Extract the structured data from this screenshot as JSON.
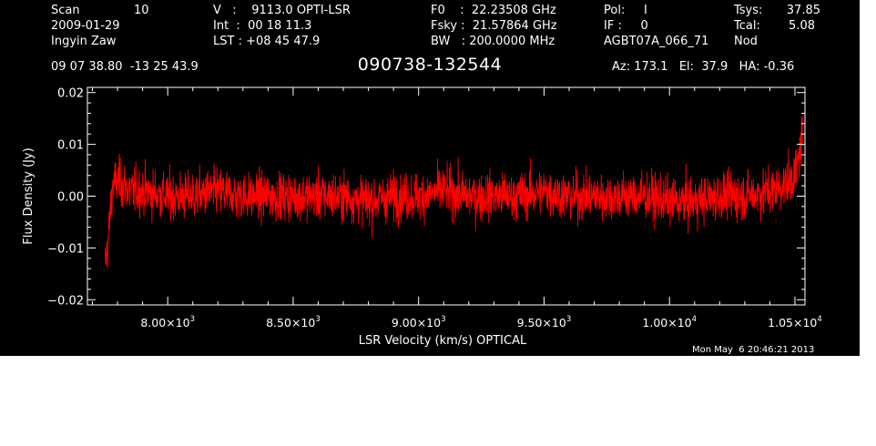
{
  "header": {
    "col1": [
      {
        "label": "Scan",
        "value": "10"
      },
      {
        "label": "2009-01-29",
        "value": ""
      },
      {
        "label": "Ingyin Zaw",
        "value": ""
      }
    ],
    "col2": [
      "V   :    9113.0 OPTI-LSR",
      "Int  :  00 18 11.3",
      "LST : +08 45 47.9"
    ],
    "col3": [
      "F0    :  22.23508 GHz",
      "Fsky :  21.57864 GHz",
      "BW   : 200.0000 MHz"
    ],
    "col4": [
      "Pol:     I",
      "IF :     0",
      "AGBT07A_066_71"
    ],
    "col5": [
      {
        "label": "Tsys:",
        "value": "37.85"
      },
      {
        "label": "Tcal:",
        "value": "5.08"
      },
      {
        "label": "Nod",
        "value": ""
      }
    ],
    "coords": "09 07 38.80  -13 25 43.9",
    "source": "090738-132544",
    "azel": "Az: 173.1   El:  37.9   HA: -0.36"
  },
  "timestamp": "Mon May  6 20:46:21 2013",
  "chart_data": {
    "type": "line",
    "xlabel": "LSR Velocity (km/s) OPTICAL",
    "ylabel": "Flux Density (Jy)",
    "xlim": [
      7680,
      10540
    ],
    "ylim": [
      -0.021,
      0.021
    ],
    "x_ticks": [
      {
        "value": 8000,
        "mant": "8.00",
        "exp": "3"
      },
      {
        "value": 8500,
        "mant": "8.50",
        "exp": "3"
      },
      {
        "value": 9000,
        "mant": "9.00",
        "exp": "3"
      },
      {
        "value": 9500,
        "mant": "9.50",
        "exp": "3"
      },
      {
        "value": 10000,
        "mant": "1.00",
        "exp": "4"
      },
      {
        "value": 10500,
        "mant": "1.05",
        "exp": "4"
      }
    ],
    "y_ticks": [
      -0.02,
      -0.01,
      0.0,
      0.01,
      0.02
    ],
    "y_tick_labels": [
      "−0.02",
      "−0.01",
      "0.00",
      "0.01",
      "0.02"
    ],
    "series": [
      {
        "color": "#ff0000",
        "x": [
          7750,
          7760,
          7770,
          7780,
          7800,
          7850,
          7900,
          8000,
          8100,
          8200,
          8300,
          8400,
          8500,
          8600,
          8700,
          8800,
          8900,
          9000,
          9100,
          9200,
          9300,
          9400,
          9500,
          9600,
          9700,
          9800,
          9900,
          10000,
          10100,
          10200,
          10300,
          10400,
          10450,
          10480,
          10500,
          10510,
          10520,
          10530
        ],
        "y": [
          -0.013,
          -0.01,
          -0.004,
          0.002,
          0.003,
          0.001,
          0.001,
          0.0,
          0.0,
          0.001,
          0.0,
          0.0,
          0.0,
          0.0,
          0.0,
          -0.001,
          0.0,
          0.0,
          0.001,
          0.0,
          0.0,
          0.0,
          0.001,
          0.0,
          0.0,
          0.0,
          0.0,
          -0.001,
          -0.001,
          0.0,
          0.0,
          0.001,
          0.002,
          0.003,
          0.004,
          0.006,
          0.009,
          0.012
        ],
        "noise_rms": 0.0032,
        "samples": 2600
      }
    ]
  }
}
